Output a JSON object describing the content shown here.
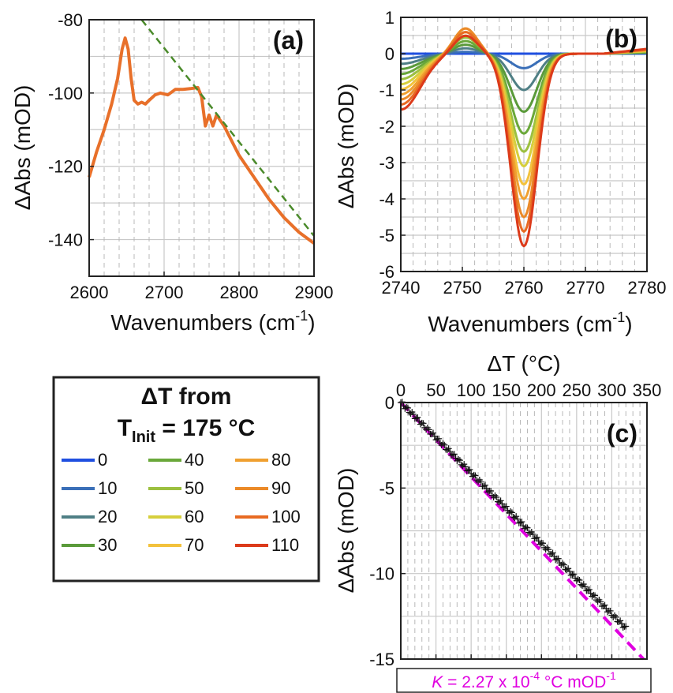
{
  "chart_data": [
    {
      "type": "line",
      "panel_label": "(a)",
      "xlabel_main": "Wavenumbers (cm",
      "xlabel_sup": "-1",
      "xlabel_end": ")",
      "ylabel": "ΔAbs (mOD)",
      "xlim": [
        2600,
        2900
      ],
      "ylim": [
        -150,
        -80
      ],
      "xticks": [
        "2600",
        "2700",
        "2800",
        "2900"
      ],
      "yticks": [
        "-80",
        "-100",
        "-120",
        "-140"
      ],
      "grid": true,
      "series": [
        {
          "color": "#e8702a",
          "style": "solid",
          "x": [
            2600,
            2610,
            2620,
            2630,
            2638,
            2644,
            2648,
            2652,
            2656,
            2660,
            2665,
            2670,
            2675,
            2680,
            2688,
            2695,
            2705,
            2715,
            2725,
            2735,
            2745,
            2750,
            2755,
            2760,
            2765,
            2770,
            2780,
            2800,
            2820,
            2840,
            2860,
            2880,
            2900
          ],
          "y": [
            -123,
            -116,
            -110,
            -103,
            -96,
            -88,
            -85,
            -88,
            -96,
            -102,
            -103,
            -102.5,
            -103,
            -102,
            -100.5,
            -100,
            -100.5,
            -99,
            -99,
            -98.8,
            -98.5,
            -101,
            -109,
            -106,
            -109,
            -106,
            -109,
            -117,
            -123,
            -129,
            -134,
            -138,
            -141
          ]
        },
        {
          "color": "#4a8a2a",
          "style": "dashed",
          "x": [
            2670,
            2900
          ],
          "y": [
            -80,
            -139
          ]
        }
      ]
    },
    {
      "type": "line",
      "panel_label": "(b)",
      "xlabel_main": "Wavenumbers (cm",
      "xlabel_sup": "-1",
      "xlabel_end": ")",
      "ylabel": "ΔAbs (mOD)",
      "xlim": [
        2740,
        2780
      ],
      "ylim": [
        -6,
        1
      ],
      "xticks": [
        "2740",
        "2750",
        "2760",
        "2770",
        "2780"
      ],
      "yticks": [
        "1",
        "0",
        "-1",
        "-2",
        "-3",
        "-4",
        "-5",
        "-6"
      ],
      "grid": true,
      "series_peak_min": [
        0,
        -0.4,
        -1.0,
        -1.6,
        -2.2,
        -2.7,
        -3.1,
        -3.6,
        -4.0,
        -4.5,
        -4.9,
        -5.3
      ],
      "series_peak_max": [
        0,
        0.05,
        0.15,
        0.25,
        0.35,
        0.45,
        0.5,
        0.6,
        0.7,
        0.7,
        0.6,
        0.5
      ],
      "series_colors": [
        "#1f4fe0",
        "#3a6fb8",
        "#4f7f85",
        "#5a9a3a",
        "#6aa83a",
        "#9cc040",
        "#d6cf3c",
        "#f3c23c",
        "#f0a030",
        "#eb8a28",
        "#e86a22",
        "#dc3a1a"
      ]
    },
    {
      "type": "scatter",
      "panel_label": "(c)",
      "xlabel": "ΔT (°C)",
      "ylabel": "ΔAbs (mOD)",
      "xlim": [
        0,
        350
      ],
      "ylim": [
        -15,
        0
      ],
      "xticks": [
        "0",
        "50",
        "100",
        "150",
        "200",
        "250",
        "300",
        "350"
      ],
      "yticks": [
        "0",
        "-5",
        "-10",
        "-15"
      ],
      "grid": true,
      "scatter_x_range": [
        0,
        320
      ],
      "scatter_y_range": [
        0,
        -13.2
      ],
      "fit": {
        "x": [
          0,
          345
        ],
        "y": [
          0,
          -15
        ]
      },
      "fit_label": {
        "k": "K",
        "eq": " = 2.27 x 10",
        "exp": "-4",
        "unit": " °C mOD",
        "unit_exp": "-1"
      }
    }
  ],
  "legend": {
    "title_line1": "ΔT from",
    "title_t": "T",
    "title_sub": "Init",
    "title_rest": " = 175 °C",
    "entries": [
      {
        "label": "0",
        "color": "#1f4fe0"
      },
      {
        "label": "10",
        "color": "#3a6fb8"
      },
      {
        "label": "20",
        "color": "#4f7f85"
      },
      {
        "label": "30",
        "color": "#5a9a3a"
      },
      {
        "label": "40",
        "color": "#6aa83a"
      },
      {
        "label": "50",
        "color": "#9cc040"
      },
      {
        "label": "60",
        "color": "#d6cf3c"
      },
      {
        "label": "70",
        "color": "#f3c23c"
      },
      {
        "label": "80",
        "color": "#f0a030"
      },
      {
        "label": "90",
        "color": "#eb8a28"
      },
      {
        "label": "100",
        "color": "#e86a22"
      },
      {
        "label": "110",
        "color": "#dc3a1a"
      }
    ]
  }
}
